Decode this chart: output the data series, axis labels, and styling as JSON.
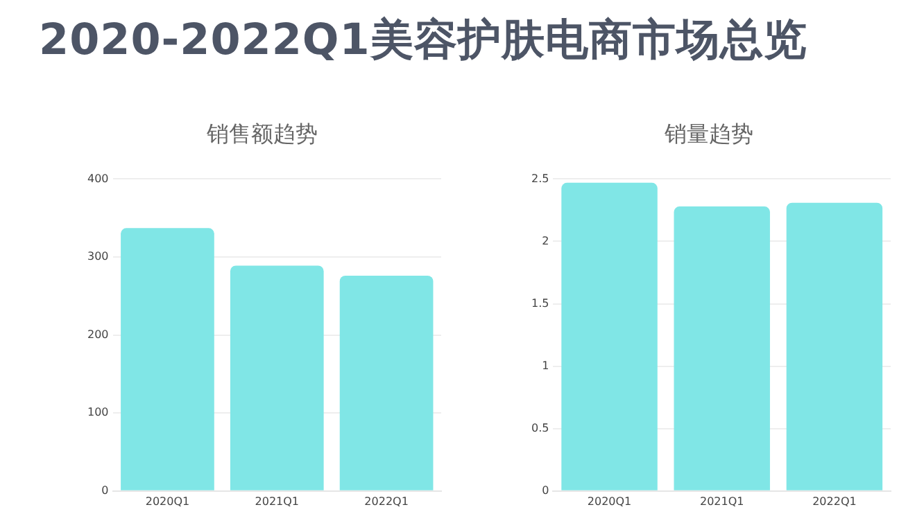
{
  "chart_data": [
    {
      "type": "other",
      "title": "2020-2022Q1美容护肤电商市场总览"
    },
    {
      "type": "bar",
      "title": "销售额趋势",
      "categories": [
        "2020Q1",
        "2021Q1",
        "2022Q1"
      ],
      "values": [
        337,
        289,
        276
      ],
      "color": "#80e6e6",
      "ylim": [
        0,
        400
      ],
      "yticks": [
        0,
        100,
        200,
        300,
        400
      ],
      "grid": "y",
      "legend": false
    },
    {
      "type": "bar",
      "title": "销量趋势",
      "categories": [
        "2020Q1",
        "2021Q1",
        "2022Q1"
      ],
      "values": [
        2.47,
        2.28,
        2.31
      ],
      "color": "#80e6e6",
      "ylim": [
        0,
        2.5
      ],
      "yticks": [
        0,
        0.5,
        1,
        1.5,
        2,
        2.5
      ],
      "grid": "y",
      "legend": false
    }
  ]
}
